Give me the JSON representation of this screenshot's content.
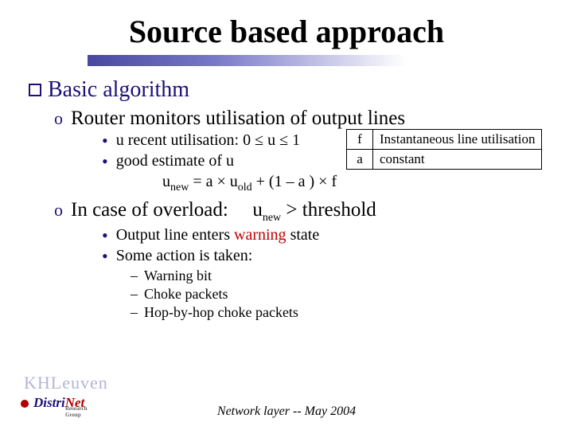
{
  "title": "Source based approach",
  "colors": {
    "heading": "#1d1078",
    "bullet": "#1d1078",
    "warning": "#c00000",
    "text": "#000000",
    "background": "#ffffff",
    "underline_gradient_from": "#4848a0",
    "underline_gradient_to": "#ffffff",
    "logo_light": "#b4b4d8",
    "logo_dark": "#1d1078",
    "logo_red": "#b00000"
  },
  "fontsizes": {
    "title": 40,
    "level1": 28,
    "level2": 25,
    "level3": 20,
    "level4": 18,
    "footer": 16,
    "table": 17
  },
  "section1": {
    "heading": "Basic algorithm",
    "item1": "Router monitors utilisation of output lines",
    "sub1_prefix": "u recent utilisation:   0 ",
    "sub1_mid1": " u ",
    "sub1_suffix": " 1",
    "sub2": "good estimate of u",
    "formula_u": "u",
    "formula_new": "new",
    "formula_eq": " = a ",
    "formula_old": "old",
    "formula_plus": " + (1 ",
    "formula_minus": "–",
    "formula_end": "  a )  ",
    "formula_times": "×",
    "formula_f": " f",
    "item2_prefix": "In case of overload:",
    "item2_cond_u": "u",
    "item2_cond_new": "new",
    "item2_cond_rest": " > threshold",
    "sub3_a": "Output line enters ",
    "sub3_b": "warning",
    "sub3_c": " state",
    "sub4": "Some action is taken:",
    "dash1": "Warning bit",
    "dash2": "Choke packets",
    "dash3": "Hop-by-hop choke packets"
  },
  "deftable": {
    "r1c1": "f",
    "r1c2": "Instantaneous line utilisation",
    "r2c1": "a",
    "r2c2": "constant"
  },
  "footer": "Network layer  --  May 2004",
  "logo": {
    "line1": "KHLeuven",
    "line2a": "Distri",
    "line2b": "Net",
    "subline": "Research Group"
  }
}
